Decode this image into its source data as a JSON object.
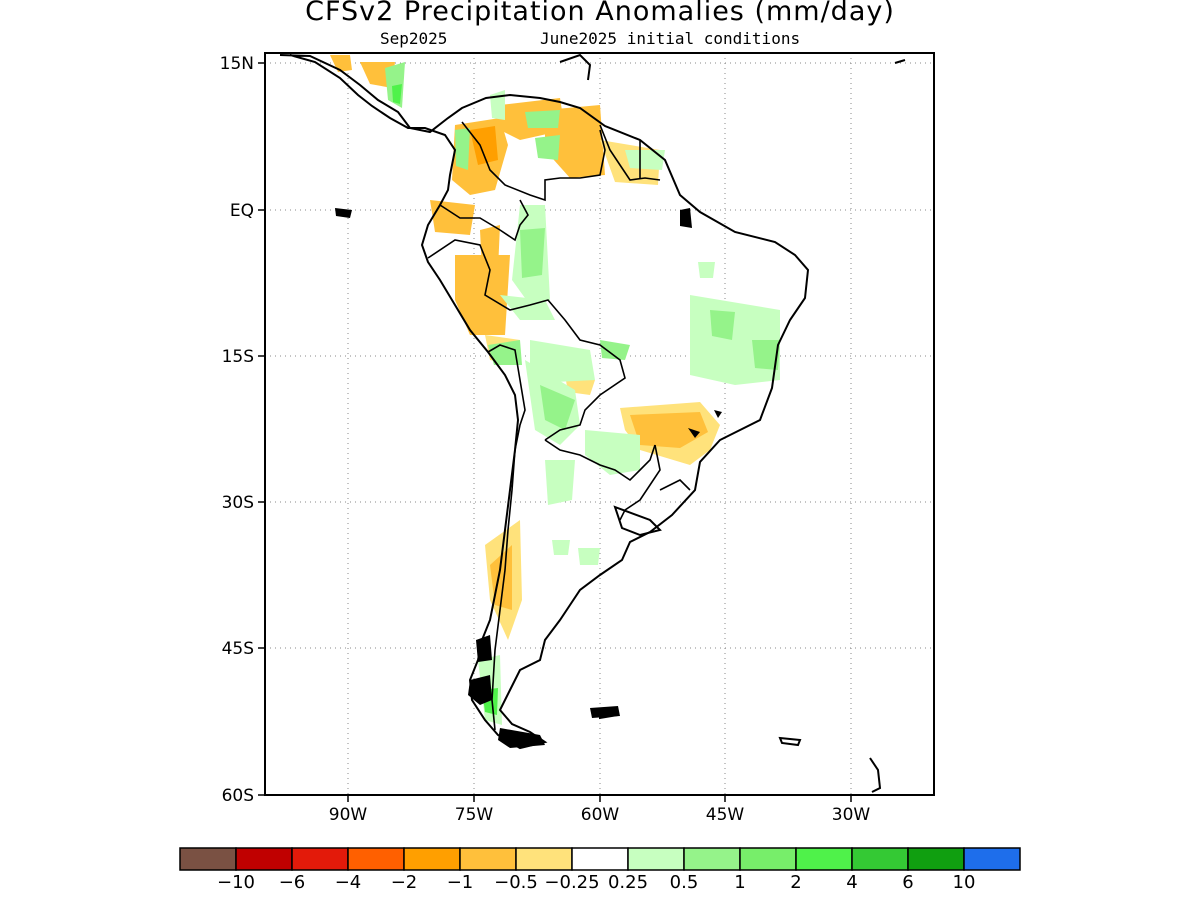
{
  "title": "CFSv2 Precipitation Anomalies (mm/day)",
  "subtitle_valid": "Sep2025",
  "subtitle_init": "June2025 initial conditions",
  "lat_labels": [
    "15N",
    "EQ",
    "15S",
    "30S",
    "45S",
    "60S"
  ],
  "lon_labels": [
    "90W",
    "75W",
    "60W",
    "45W",
    "30W"
  ],
  "colorbar": {
    "colors": [
      "#7a5143",
      "#c00000",
      "#e31a0a",
      "#ff6000",
      "#ff9f00",
      "#ffc03b",
      "#ffe27b",
      "#ffffff",
      "#c7ffc0",
      "#95f38a",
      "#77ee6a",
      "#4ff24a",
      "#34c934",
      "#109f10",
      "#1e6eeb"
    ],
    "labels": [
      "-10",
      "-6",
      "-4",
      "-2",
      "-1",
      "-0.5",
      "-0.25",
      "0.25",
      "0.5",
      "1",
      "2",
      "4",
      "6",
      "10"
    ]
  }
}
